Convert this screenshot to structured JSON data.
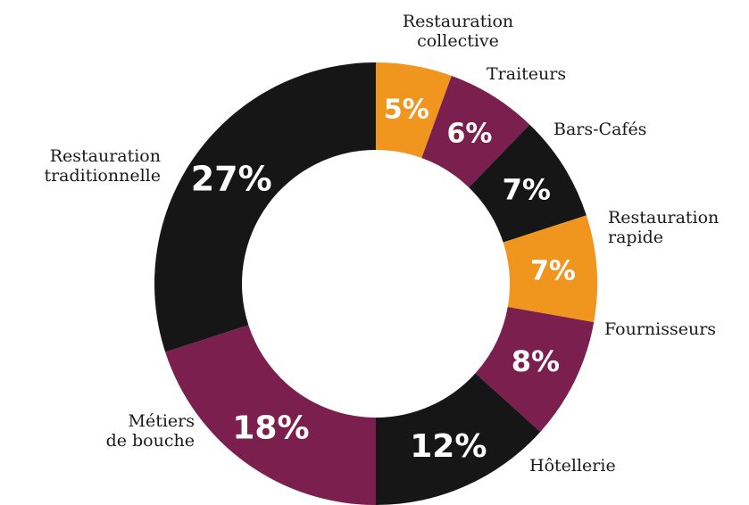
{
  "chart_data": {
    "type": "pie",
    "style": "donut",
    "title": "",
    "unit": "%",
    "start_category": "Restauration collective",
    "direction": "clockwise",
    "colors": {
      "orange": "#f0951e",
      "plum": "#7a1f4e",
      "black": "#161616",
      "text": "#1a1a1a"
    },
    "slices": [
      {
        "label": "Restauration collective",
        "value": 5,
        "display": "5%",
        "color": "#f0951e"
      },
      {
        "label": "Traiteurs",
        "value": 6,
        "display": "6%",
        "color": "#7a1f4e"
      },
      {
        "label": "Bars-Cafés",
        "value": 7,
        "display": "7%",
        "color": "#161616"
      },
      {
        "label": "Restauration rapide",
        "value": 7,
        "display": "7%",
        "color": "#f0951e"
      },
      {
        "label": "Fournisseurs",
        "value": 8,
        "display": "8%",
        "color": "#7a1f4e"
      },
      {
        "label": "Hôtellerie",
        "value": 12,
        "display": "12%",
        "color": "#161616"
      },
      {
        "label": "Métiers de bouche",
        "value": 18,
        "display": "18%",
        "color": "#7a1f4e"
      },
      {
        "label": "Restauration traditionnelle",
        "value": 27,
        "display": "27%",
        "color": "#161616"
      }
    ],
    "label_lines": [
      [
        "Restauration",
        "collective"
      ],
      [
        "Traiteurs"
      ],
      [
        "Bars-Cafés"
      ],
      [
        "Restauration",
        "rapide"
      ],
      [
        "Fournisseurs"
      ],
      [
        "Hôtellerie"
      ],
      [
        "Métiers",
        "de bouche"
      ],
      [
        "Restauration",
        "traditionnelle"
      ]
    ]
  }
}
